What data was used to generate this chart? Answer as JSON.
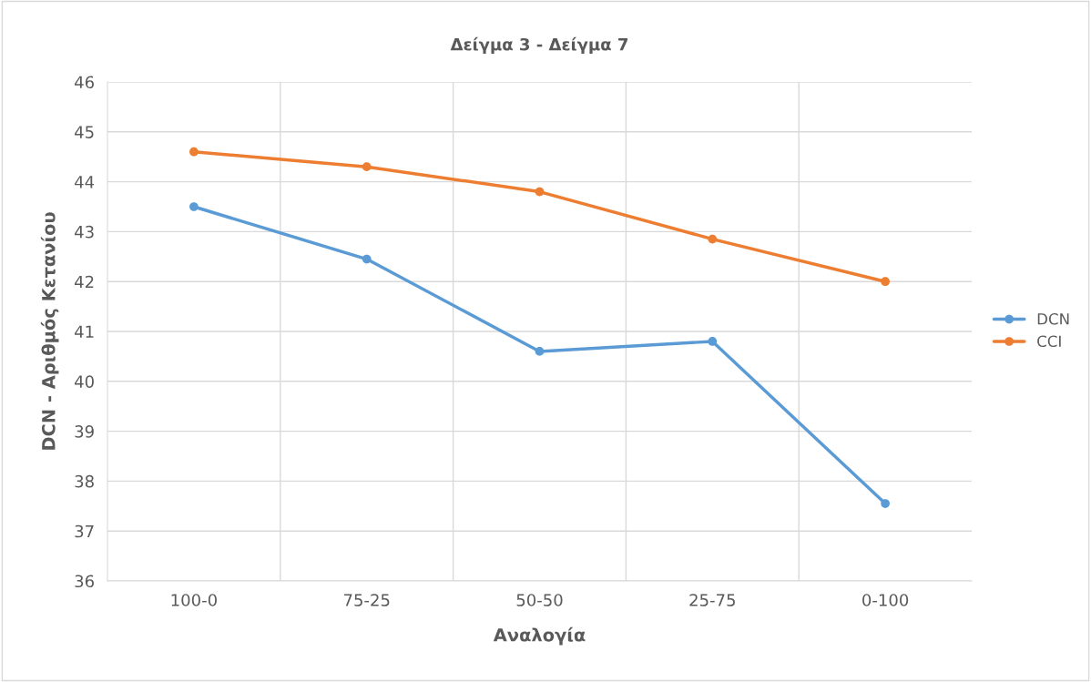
{
  "chart_data": {
    "type": "line",
    "title": "Δείγμα 3 - Δείγμα 7",
    "xlabel": "Αναλογία",
    "ylabel": "DCN - Αριθμός Κετανίου",
    "categories": [
      "100-0",
      "75-25",
      "50-50",
      "25-75",
      "0-100"
    ],
    "series": [
      {
        "name": "DCN",
        "color": "#5b9bd5",
        "values": [
          43.5,
          42.45,
          40.6,
          40.8,
          37.55
        ]
      },
      {
        "name": "CCI",
        "color": "#ed7d31",
        "values": [
          44.6,
          44.3,
          43.8,
          42.85,
          42.0
        ]
      }
    ],
    "ylim": [
      36,
      46
    ],
    "yticks": [
      36,
      37,
      38,
      39,
      40,
      41,
      42,
      43,
      44,
      45,
      46
    ],
    "grid": true,
    "legend": "right",
    "marker": "circle",
    "line_style": "solid"
  }
}
